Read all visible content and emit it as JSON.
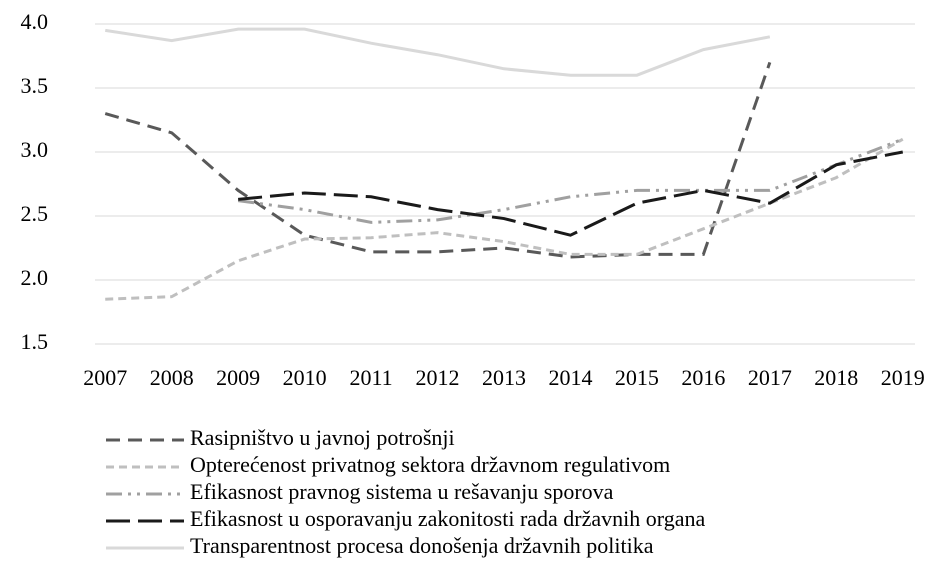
{
  "chart_data": {
    "type": "line",
    "categories": [
      "2007",
      "2008",
      "2009",
      "2010",
      "2011",
      "2012",
      "2013",
      "2014",
      "2015",
      "2016",
      "2017",
      "2018",
      "2019"
    ],
    "ylim": [
      1.5,
      4.0
    ],
    "yticks": [
      1.5,
      {
        "value": 2.0,
        "label": "2.0"
      },
      2.5,
      {
        "value": 3.0,
        "label": "3.0"
      },
      3.5,
      {
        "value": 4.0,
        "label": "4.0"
      }
    ],
    "grid": true,
    "legend": "bottom",
    "series": [
      {
        "name": "Rasipništvo u javnoj potrošnji",
        "color": "#595959",
        "dash": "14,8",
        "values": [
          3.3,
          3.15,
          2.7,
          2.35,
          2.22,
          2.22,
          2.25,
          2.18,
          2.2,
          2.2,
          3.7,
          null,
          null
        ]
      },
      {
        "name": "Opterećenost privatnog sektora državnom regulativom",
        "color": "#bfbfbf",
        "dash": "8,5",
        "values": [
          1.85,
          1.87,
          2.15,
          2.32,
          2.33,
          2.37,
          2.3,
          2.2,
          2.2,
          2.4,
          2.6,
          2.8,
          3.1
        ]
      },
      {
        "name": "Efikasnost pravnog sistema u rešavanju sporova",
        "color": "#a0a0a0",
        "dash": "16,6,3,6,3,6",
        "values": [
          null,
          null,
          2.62,
          2.55,
          2.45,
          2.47,
          2.55,
          2.65,
          2.7,
          2.7,
          2.7,
          2.9,
          3.1
        ]
      },
      {
        "name": "Efikasnost u osporavanju zakonitosti rada državnih organa",
        "color": "#1a1a1a",
        "dash": "24,8",
        "values": [
          null,
          null,
          2.63,
          2.68,
          2.65,
          2.55,
          2.48,
          2.35,
          2.6,
          2.7,
          2.6,
          2.9,
          3.0
        ]
      },
      {
        "name": "Transparentnost procesa donošenja državnih politika",
        "color": "#d9d9d9",
        "dash": "",
        "values": [
          3.95,
          3.87,
          3.96,
          3.96,
          3.85,
          3.76,
          3.65,
          3.6,
          3.6,
          3.8,
          3.9,
          null,
          null
        ]
      }
    ]
  }
}
